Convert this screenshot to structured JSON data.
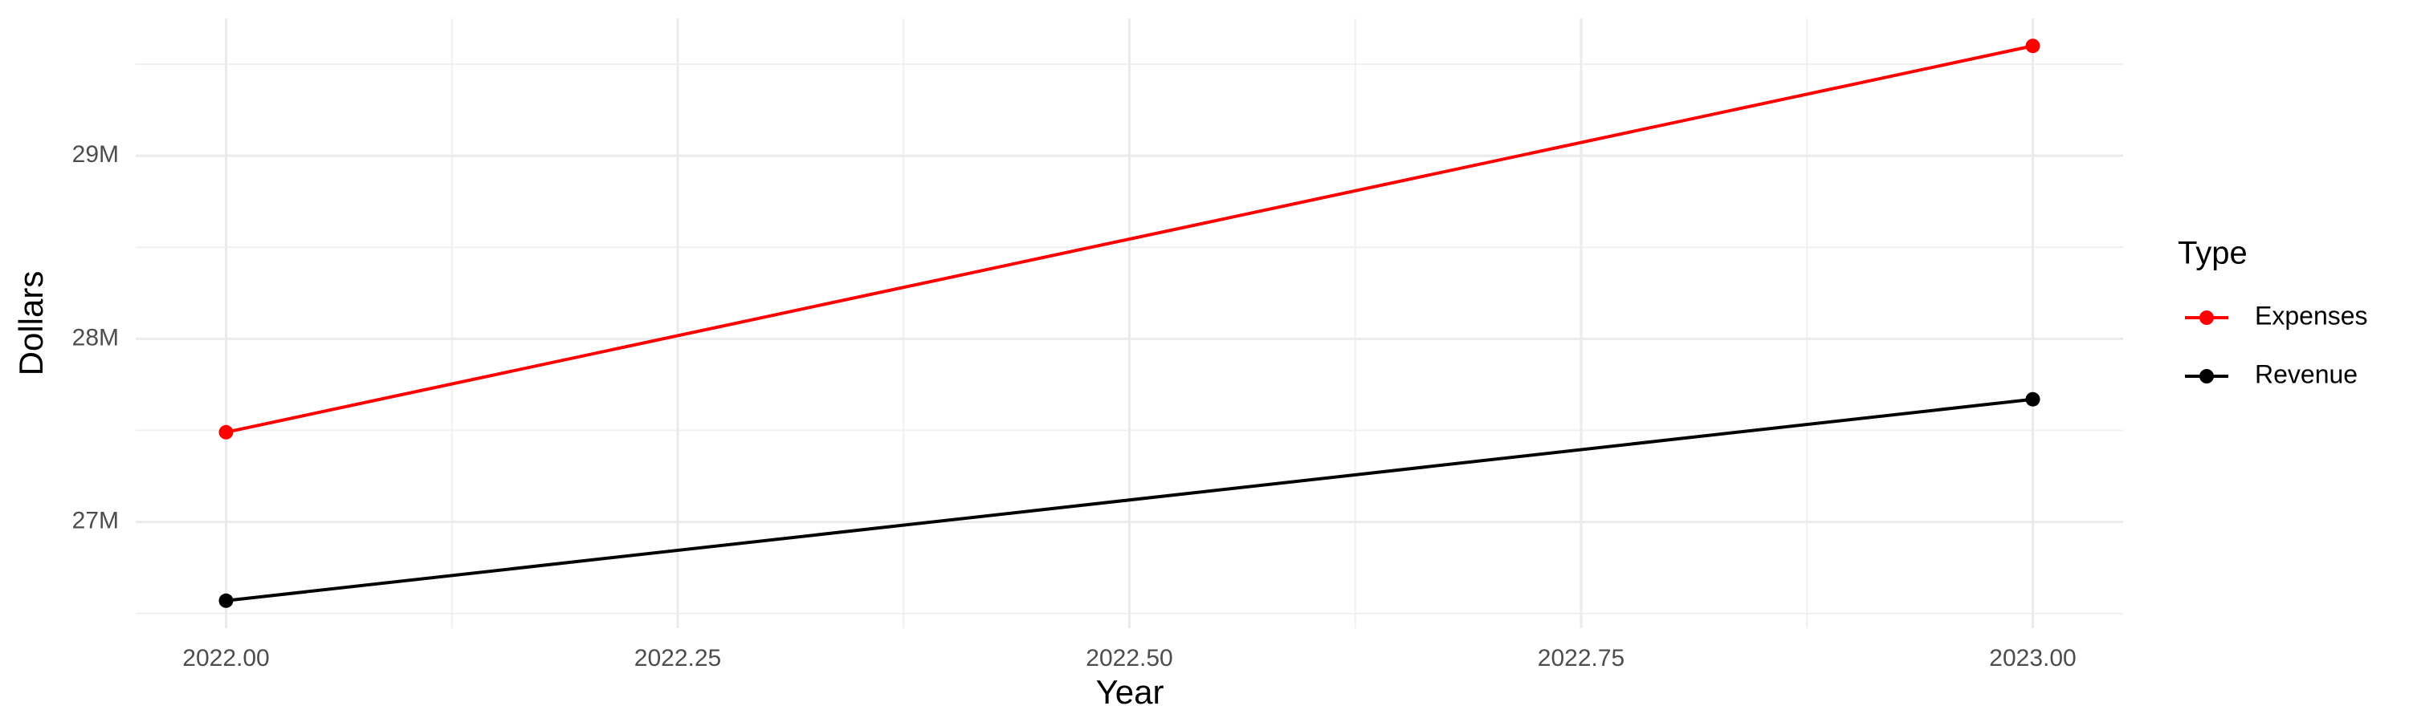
{
  "chart_data": {
    "type": "line",
    "x_label": "Year",
    "y_label": "Dollars",
    "x": [
      2022,
      2023
    ],
    "series": [
      {
        "name": "Expenses",
        "color": "#ff0000",
        "values": [
          27490000,
          29600000
        ]
      },
      {
        "name": "Revenue",
        "color": "#000000",
        "values": [
          26570000,
          27670000
        ]
      }
    ],
    "xlim": [
      2021.95,
      2023.05
    ],
    "xticks": [
      {
        "value": 2022,
        "label": "2022.00"
      },
      {
        "value": 2022.25,
        "label": "2022.25"
      },
      {
        "value": 2022.5,
        "label": "2022.50"
      },
      {
        "value": 2022.75,
        "label": "2022.75"
      },
      {
        "value": 2023,
        "label": "2023.00"
      }
    ],
    "ylim": [
      26420000,
      29750000
    ],
    "yticks": [
      {
        "value": 27000000,
        "label": "27M"
      },
      {
        "value": 28000000,
        "label": "28M"
      },
      {
        "value": 29000000,
        "label": "29M"
      }
    ],
    "grid": true,
    "minor_grid": true,
    "legend_title": "Type",
    "legend_position": "right"
  }
}
